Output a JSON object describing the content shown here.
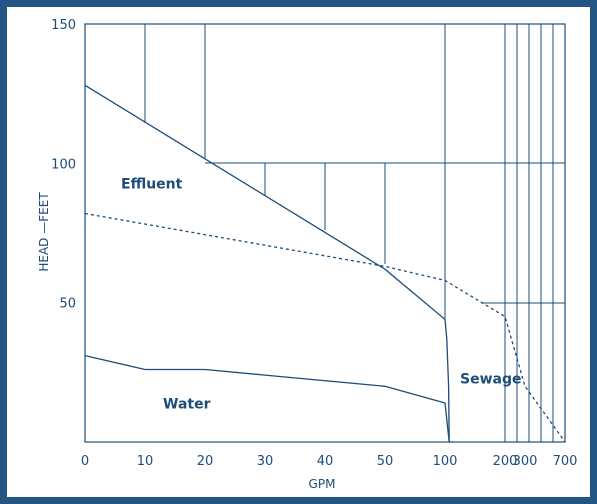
{
  "chart_data": {
    "type": "line",
    "xlabel": "GPM",
    "ylabel": "HEAD —FEET",
    "x_ticks": [
      "0",
      "10",
      "20",
      "30",
      "40",
      "50",
      "100",
      "200",
      "300",
      "700"
    ],
    "y_ticks": [
      "150",
      "100",
      "50"
    ],
    "ylim": [
      0,
      150
    ],
    "grid": "partial",
    "regions": [
      {
        "label": "Effluent",
        "x": 6,
        "y": 91
      },
      {
        "label": "Water",
        "x": 13,
        "y": 12
      },
      {
        "label": "Sewage",
        "x": 125,
        "y": 21
      }
    ],
    "series": [
      {
        "style": "solid",
        "points": [
          [
            0,
            128
          ],
          [
            50,
            62
          ],
          [
            100,
            44
          ],
          [
            103,
            37
          ],
          [
            106,
            20
          ],
          [
            107,
            0
          ]
        ]
      },
      {
        "style": "dashed",
        "points": [
          [
            0,
            82
          ],
          [
            50,
            63
          ],
          [
            100,
            58
          ],
          [
            200,
            45
          ],
          [
            300,
            20
          ],
          [
            700,
            0
          ]
        ]
      },
      {
        "style": "solid",
        "points": [
          [
            0,
            31
          ],
          [
            10,
            26
          ],
          [
            20,
            26
          ],
          [
            30,
            24
          ],
          [
            50,
            20
          ],
          [
            100,
            14
          ],
          [
            107,
            0
          ]
        ]
      }
    ],
    "colors": {
      "line": "#1d4c7a",
      "text": "#1d4c7a",
      "frame": "#245685"
    }
  }
}
